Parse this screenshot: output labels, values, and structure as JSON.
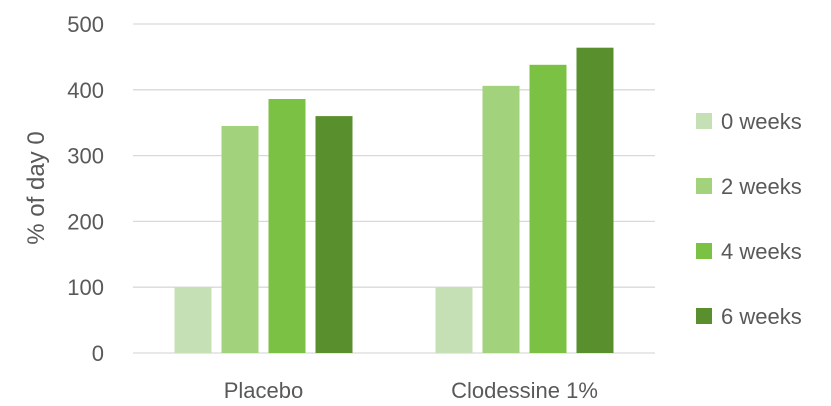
{
  "chart_data": {
    "type": "bar",
    "title": "",
    "xlabel": "",
    "ylabel": "% of day 0",
    "categories": [
      "Placebo",
      "Clodessine 1%"
    ],
    "series": [
      {
        "name": "0 weeks",
        "color": "#c5e0b4",
        "values": [
          100,
          100
        ]
      },
      {
        "name": "2 weeks",
        "color": "#a3d27c",
        "values": [
          345,
          406
        ]
      },
      {
        "name": "4 weeks",
        "color": "#7bc143",
        "values": [
          386,
          438
        ]
      },
      {
        "name": "6 weeks",
        "color": "#5a8f2e",
        "values": [
          360,
          464
        ]
      }
    ],
    "ylim": [
      0,
      500
    ],
    "yticks": [
      0,
      100,
      200,
      300,
      400,
      500
    ],
    "grid": true,
    "legend_position": "right"
  }
}
